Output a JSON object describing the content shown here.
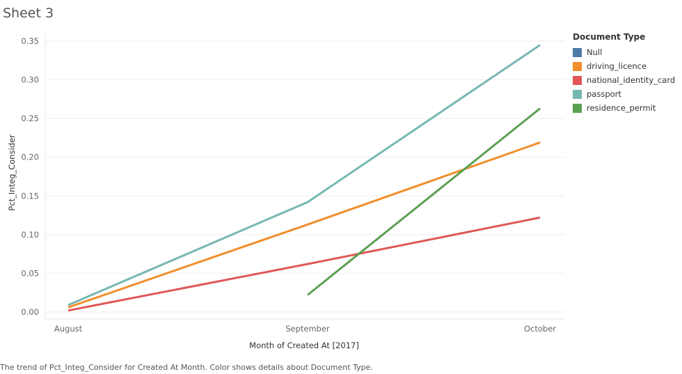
{
  "sheet_title": "Sheet 3",
  "caption": "The trend of Pct_Integ_Consider for Created At Month.  Color shows details about Document Type.",
  "chart_data": {
    "type": "line",
    "title": "",
    "xlabel": "Month of Created At [2017]",
    "ylabel": "Pct_Integ_Consider",
    "categories": [
      "August",
      "September",
      "October"
    ],
    "ylim": [
      0,
      0.35
    ],
    "yticks": [
      "0.00",
      "0.05",
      "0.10",
      "0.15",
      "0.20",
      "0.25",
      "0.30",
      "0.35"
    ],
    "grid": true,
    "legend_title": "Document Type",
    "legend_position": "right",
    "series": [
      {
        "name": "Null",
        "color": "#4e79a7",
        "values": [
          null,
          null,
          null
        ]
      },
      {
        "name": "driving_licence",
        "color": "#f28e2b",
        "values": [
          0.006,
          0.113,
          0.219
        ]
      },
      {
        "name": "national_identity_card",
        "color": "#e15759",
        "values": [
          0.002,
          0.062,
          0.122
        ]
      },
      {
        "name": "passport",
        "color": "#76b7b2",
        "values": [
          0.009,
          0.142,
          0.345
        ]
      },
      {
        "name": "residence_permit",
        "color": "#59a14f",
        "values": [
          null,
          0.022,
          0.263
        ]
      }
    ]
  }
}
